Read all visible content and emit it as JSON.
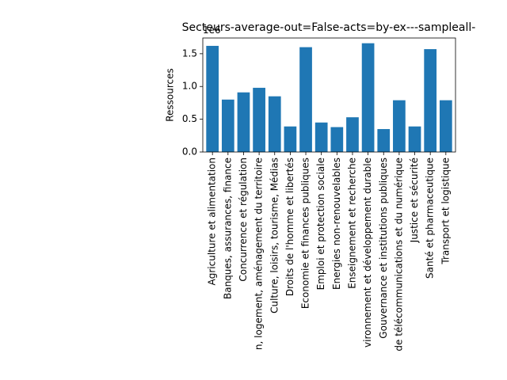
{
  "chart_data": {
    "type": "bar",
    "title": "Secteurs-average-out=False-acts=by-ex---sampleall-",
    "y_label": "Ressources",
    "offset_text": "1e6",
    "categories": [
      "Agriculture et alimentation",
      "Banques, assurances, finance",
      "Concurrence et régulation",
      "n, logement, aménagement du territoire",
      "Culture, loisirs, tourisme, Médias",
      "Droits de l'homme et libertés",
      "Economie et finances publiques",
      "Emploi et protection sociale",
      "Energies non-renouvelables",
      "Enseignement et recherche",
      "vironnement et développement durable",
      "Gouvernance et institutions publiques",
      "de télécommunications et du numérique",
      "Justice et sécurité",
      "Santé et pharmaceutique",
      "Transport et logistique"
    ],
    "values": [
      1.62,
      0.8,
      0.91,
      0.98,
      0.85,
      0.39,
      1.6,
      0.45,
      0.38,
      0.53,
      1.66,
      0.35,
      0.79,
      0.39,
      1.57,
      0.79
    ],
    "color": "#1f77b4",
    "ylim": [
      0,
      1.74
    ],
    "yticks": [
      {
        "value": 0,
        "label": "0.0"
      },
      0.5,
      {
        "value": 1,
        "label": "1.0"
      },
      1.5
    ],
    "grid": false
  }
}
